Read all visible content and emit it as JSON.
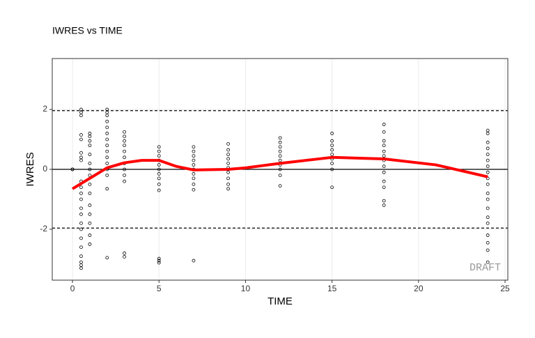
{
  "chart_data": {
    "type": "scatter",
    "title": "IWRES vs TIME",
    "x_label": "TIME",
    "y_label": "IWRES",
    "annotation": "DRAFT",
    "point_color": "#000000",
    "x": [
      0,
      0,
      0,
      0.5,
      0.5,
      0.5,
      0.5,
      0.5,
      0.5,
      0.5,
      0.5,
      0.5,
      0.5,
      0.5,
      0.5,
      0.5,
      0.5,
      0.5,
      0.5,
      0.5,
      0.5,
      0.5,
      0.5,
      0.5,
      0.5,
      1,
      1,
      1,
      1,
      1,
      1,
      1,
      1,
      1,
      1,
      1,
      1,
      1,
      1,
      1,
      2,
      2,
      2,
      2,
      2,
      2,
      2,
      2,
      2,
      2,
      2,
      2,
      2,
      2,
      2,
      3,
      3,
      3,
      3,
      3,
      3,
      3,
      3,
      3,
      3,
      3,
      3,
      5,
      5,
      5,
      5,
      5,
      5,
      5,
      5,
      5,
      5,
      5,
      5,
      5,
      7,
      7,
      7,
      7,
      7,
      7,
      7,
      7,
      7,
      7,
      7,
      9,
      9,
      9,
      9,
      9,
      9,
      9,
      9,
      9,
      9,
      12,
      12,
      12,
      12,
      12,
      12,
      12,
      12,
      12,
      12,
      15,
      15,
      15,
      15,
      15,
      15,
      15,
      15,
      15,
      18,
      18,
      18,
      18,
      18,
      18,
      18,
      18,
      18,
      18,
      18,
      18,
      18,
      24,
      24,
      24,
      24,
      24,
      24,
      24,
      24,
      24,
      24,
      24,
      24,
      24,
      24,
      24,
      24,
      24,
      24,
      24
    ],
    "y": [
      0,
      0,
      0,
      2.0,
      1.9,
      1.8,
      1.15,
      1.0,
      0.55,
      0.4,
      0.3,
      -0.4,
      -0.6,
      -0.8,
      -1.0,
      -1.3,
      -1.5,
      -1.8,
      -2.0,
      -2.3,
      -2.6,
      -2.9,
      -3.1,
      -3.2,
      -3.3,
      1.2,
      1.1,
      0.95,
      0.8,
      0.5,
      0.2,
      0,
      -0.2,
      -0.5,
      -0.8,
      -1.2,
      -1.5,
      -1.8,
      -2.2,
      -2.5,
      2.0,
      1.9,
      1.8,
      1.6,
      1.4,
      1.2,
      1.0,
      0.8,
      0.6,
      0.4,
      0.2,
      0,
      -0.2,
      -0.65,
      -2.95,
      1.25,
      1.1,
      0.95,
      0.8,
      0.6,
      0.4,
      0.2,
      0,
      -0.2,
      -0.4,
      -2.8,
      -2.92,
      0.75,
      0.6,
      0.45,
      0.3,
      0.15,
      0,
      -0.15,
      -0.3,
      -0.5,
      -0.7,
      -2.98,
      -3.05,
      -3.12,
      0.75,
      0.6,
      0.45,
      0.3,
      0.15,
      0,
      -0.15,
      -0.3,
      -0.5,
      -0.68,
      -3.05,
      0.85,
      0.65,
      0.5,
      0.35,
      0.2,
      0.05,
      -0.1,
      -0.3,
      -0.5,
      -0.65,
      1.05,
      0.9,
      0.75,
      0.6,
      0.45,
      0.3,
      0.15,
      0,
      -0.2,
      -0.55,
      1.2,
      0.95,
      0.8,
      0.65,
      0.5,
      0.35,
      0.2,
      0,
      -0.6,
      1.5,
      1.25,
      0.95,
      0.8,
      0.6,
      0.45,
      0.3,
      0.1,
      -0.1,
      -0.4,
      -0.6,
      -1.05,
      -1.2,
      1.3,
      1.2,
      0.9,
      0.7,
      0.5,
      0.3,
      0.1,
      -0.1,
      -0.3,
      -0.5,
      -0.8,
      -1.0,
      -1.3,
      -1.6,
      -1.8,
      -2.2,
      -2.45,
      -2.7,
      -3.1
    ],
    "smooth": {
      "color": "#ff0000",
      "x": [
        0,
        1,
        2,
        3,
        4,
        5,
        6,
        7,
        9,
        10,
        12,
        15,
        18,
        21,
        24
      ],
      "y": [
        -0.65,
        -0.3,
        0.05,
        0.22,
        0.3,
        0.3,
        0.1,
        -0.02,
        0,
        0.05,
        0.2,
        0.4,
        0.35,
        0.15,
        -0.25
      ]
    },
    "hlines": [
      {
        "value": 0,
        "style": "solid"
      },
      {
        "value": 1.96,
        "style": "dashed"
      },
      {
        "value": -1.96,
        "style": "dashed"
      }
    ],
    "xlim": [
      -1.17,
      25.16
    ],
    "ylim": [
      -3.7,
      3.7
    ],
    "xticks": [
      0,
      5,
      10,
      15,
      20,
      25
    ],
    "yticks": [
      -2,
      0,
      2
    ],
    "grid": true
  }
}
